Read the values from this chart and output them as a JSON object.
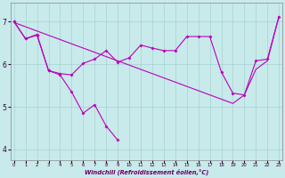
{
  "xlabel": "Windchill (Refroidissement éolien,°C)",
  "xlim": [
    -0.3,
    23.3
  ],
  "ylim": [
    3.75,
    7.45
  ],
  "yticks": [
    4,
    5,
    6,
    7
  ],
  "xticks": [
    0,
    1,
    2,
    3,
    4,
    5,
    6,
    7,
    8,
    9,
    10,
    11,
    12,
    13,
    14,
    15,
    16,
    17,
    18,
    19,
    20,
    21,
    22,
    23
  ],
  "bg_color": "#c8eaea",
  "line_color": "#bb00bb",
  "grid_color": "#a0cccc",
  "line1_x": [
    0,
    1,
    2,
    3,
    4,
    5,
    6,
    7,
    8,
    9
  ],
  "line1_y": [
    7.0,
    6.6,
    6.7,
    5.85,
    5.75,
    5.35,
    4.85,
    5.05,
    4.55,
    4.22
  ],
  "line2_x": [
    0,
    1,
    2,
    3,
    4,
    5,
    6,
    7,
    8,
    9,
    10,
    11,
    12,
    13,
    14,
    15,
    16,
    17,
    18,
    19,
    20,
    21,
    22,
    23
  ],
  "line2_y": [
    7.0,
    6.6,
    6.68,
    5.85,
    5.78,
    5.75,
    6.02,
    6.12,
    6.32,
    6.05,
    6.15,
    6.45,
    6.38,
    6.32,
    6.32,
    6.65,
    6.65,
    6.65,
    5.82,
    5.32,
    5.28,
    6.08,
    6.12,
    7.12
  ],
  "line3_x": [
    0,
    1,
    2,
    3,
    4,
    5,
    6,
    7,
    8,
    9,
    10,
    11,
    12,
    13,
    14,
    15,
    16,
    17,
    18,
    19,
    20,
    21,
    22,
    23
  ],
  "line3_y": [
    6.98,
    6.88,
    6.78,
    6.68,
    6.58,
    6.48,
    6.38,
    6.28,
    6.18,
    6.08,
    5.98,
    5.88,
    5.78,
    5.68,
    5.58,
    5.48,
    5.38,
    5.28,
    5.18,
    5.08,
    5.28,
    5.88,
    6.08,
    7.12
  ]
}
